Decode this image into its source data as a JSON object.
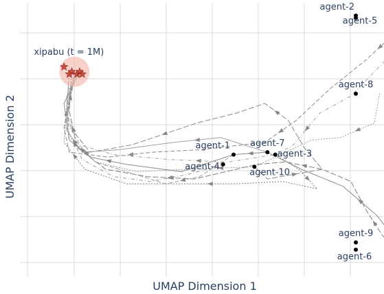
{
  "chart_data": {
    "type": "scatter",
    "xlabel": "UMAP Dimension 1",
    "ylabel": "UMAP Dimension 2",
    "xlim": [
      0,
      13.3
    ],
    "ylim": [
      0,
      11.1
    ],
    "grid": true,
    "legend": "none",
    "target": {
      "label": "xipabu (t = 1M)",
      "x": 1.8,
      "y": 8.3,
      "halo_color": "#f4b4a6",
      "marker_color": "#c0392b",
      "stars": [
        [
          1.4,
          8.5
        ],
        [
          1.7,
          8.3
        ],
        [
          1.6,
          8.2
        ],
        [
          1.9,
          8.2
        ],
        [
          2.0,
          8.3
        ],
        [
          2.1,
          8.2
        ]
      ]
    },
    "agents": [
      {
        "label": "agent-1",
        "x": 7.9,
        "y": 4.9
      },
      {
        "label": "agent-2",
        "x": 14.2,
        "y": 10.6
      },
      {
        "label": "agent-3",
        "x": 9.5,
        "y": 4.9
      },
      {
        "label": "agent-4",
        "x": 7.5,
        "y": 4.5
      },
      {
        "label": "agent-5",
        "x": 14.2,
        "y": 10.5
      },
      {
        "label": "agent-6",
        "x": 14.1,
        "y": 1.0
      },
      {
        "label": "agent-7",
        "x": 9.2,
        "y": 5.0
      },
      {
        "label": "agent-8",
        "x": 13.5,
        "y": 7.4
      },
      {
        "label": "agent-9",
        "x": 14.2,
        "y": 1.3
      },
      {
        "label": "agent-10",
        "x": 8.7,
        "y": 4.4
      }
    ],
    "trajectory_style_colors": [
      "#8a8a8a",
      "#a0a0a0",
      "#999999",
      "#7f7f7f"
    ],
    "trajectories": [
      [
        [
          14.2,
          10.6
        ],
        [
          14.0,
          9.8
        ],
        [
          13.0,
          8.8
        ],
        [
          11.6,
          7.6
        ],
        [
          10.3,
          6.3
        ],
        [
          9.1,
          5.4
        ],
        [
          6.6,
          5.1
        ],
        [
          4.8,
          5.0
        ],
        [
          3.1,
          4.8
        ],
        [
          1.6,
          5.0
        ],
        [
          1.4,
          6.0
        ],
        [
          1.6,
          7.2
        ],
        [
          1.8,
          8.2
        ]
      ],
      [
        [
          14.2,
          10.5
        ],
        [
          14.3,
          9.4
        ],
        [
          13.3,
          8.3
        ],
        [
          12.4,
          7.3
        ],
        [
          11.2,
          6.6
        ],
        [
          10.2,
          5.3
        ],
        [
          9.5,
          4.9
        ],
        [
          7.7,
          4.6
        ],
        [
          5.4,
          4.7
        ],
        [
          3.3,
          4.9
        ],
        [
          2.0,
          5.3
        ],
        [
          1.5,
          6.6
        ],
        [
          1.6,
          8.2
        ]
      ],
      [
        [
          13.5,
          7.4
        ],
        [
          13.3,
          6.2
        ],
        [
          12.0,
          5.6
        ],
        [
          10.9,
          5.5
        ],
        [
          8.7,
          4.4
        ],
        [
          6.1,
          4.3
        ],
        [
          4.2,
          4.2
        ],
        [
          2.6,
          4.6
        ],
        [
          1.6,
          5.6
        ],
        [
          1.5,
          7.3
        ],
        [
          1.9,
          8.2
        ]
      ],
      [
        [
          14.1,
          1.0
        ],
        [
          13.6,
          1.6
        ],
        [
          13.0,
          2.6
        ],
        [
          12.4,
          3.8
        ],
        [
          11.3,
          4.3
        ],
        [
          9.9,
          4.6
        ],
        [
          8.8,
          4.5
        ],
        [
          6.4,
          3.9
        ],
        [
          4.6,
          4.0
        ],
        [
          3.0,
          4.3
        ],
        [
          1.9,
          5.2
        ],
        [
          1.6,
          6.7
        ],
        [
          1.7,
          8.2
        ]
      ],
      [
        [
          14.2,
          1.3
        ],
        [
          13.4,
          2.4
        ],
        [
          12.1,
          3.6
        ],
        [
          10.5,
          4.3
        ],
        [
          9.2,
          5.0
        ],
        [
          7.9,
          4.9
        ],
        [
          5.9,
          4.2
        ],
        [
          3.8,
          4.5
        ],
        [
          2.4,
          4.8
        ],
        [
          1.6,
          5.5
        ],
        [
          1.4,
          7.0
        ],
        [
          2.0,
          8.3
        ]
      ],
      [
        [
          7.9,
          4.9
        ],
        [
          6.6,
          4.0
        ],
        [
          5.3,
          3.7
        ],
        [
          3.8,
          4.2
        ],
        [
          2.6,
          4.6
        ],
        [
          1.9,
          5.4
        ],
        [
          1.5,
          6.5
        ],
        [
          1.6,
          8.3
        ]
      ],
      [
        [
          7.5,
          4.5
        ],
        [
          6.2,
          4.1
        ],
        [
          4.7,
          3.8
        ],
        [
          3.3,
          4.0
        ],
        [
          2.1,
          4.7
        ],
        [
          1.5,
          6.0
        ],
        [
          1.7,
          8.2
        ]
      ],
      [
        [
          9.5,
          4.9
        ],
        [
          10.4,
          4.3
        ],
        [
          11.1,
          3.5
        ],
        [
          9.8,
          3.8
        ],
        [
          8.0,
          3.7
        ],
        [
          6.0,
          3.7
        ],
        [
          3.8,
          3.7
        ],
        [
          2.2,
          4.3
        ],
        [
          1.4,
          5.4
        ],
        [
          1.6,
          8.2
        ]
      ],
      [
        [
          8.7,
          4.4
        ],
        [
          9.2,
          3.9
        ],
        [
          11.3,
          4.3
        ],
        [
          10.6,
          5.2
        ],
        [
          10.0,
          6.3
        ],
        [
          9.1,
          7.0
        ],
        [
          8.0,
          6.6
        ],
        [
          6.5,
          6.2
        ],
        [
          4.0,
          5.3
        ],
        [
          2.4,
          5.0
        ],
        [
          1.5,
          6.2
        ],
        [
          1.8,
          8.3
        ]
      ],
      [
        [
          9.2,
          5.0
        ],
        [
          7.4,
          5.6
        ],
        [
          5.6,
          5.4
        ],
        [
          3.5,
          5.1
        ],
        [
          2.1,
          5.0
        ],
        [
          1.5,
          5.9
        ],
        [
          1.6,
          7.4
        ],
        [
          1.9,
          8.3
        ]
      ]
    ]
  }
}
